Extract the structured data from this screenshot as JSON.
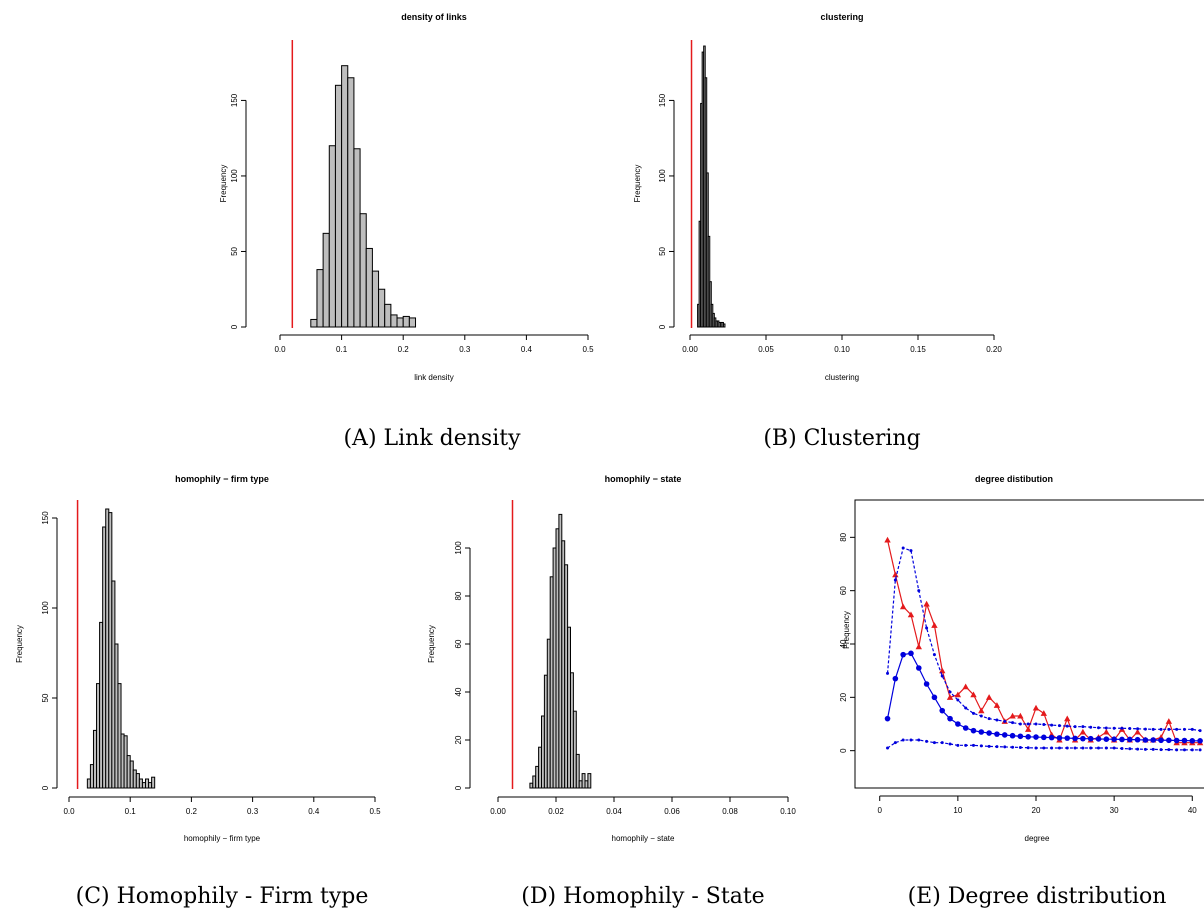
{
  "colors": {
    "observed_line": "#e41a1c",
    "hist_fill": "#bebebe",
    "simulated": "#0000dd",
    "observed_series": "#e41a1c"
  },
  "chart_data": [
    {
      "id": "A",
      "type": "bar",
      "caption": "(A) Link density",
      "title": "density of links",
      "xlabel": "link density",
      "ylabel": "Frequency",
      "xlim": [
        0,
        0.5
      ],
      "ylim": [
        0,
        190
      ],
      "xticks": [
        "0.0",
        "0.1",
        "0.2",
        "0.3",
        "0.4",
        "0.5"
      ],
      "xtick_values": [
        0,
        0.1,
        0.2,
        0.3,
        0.4,
        0.5
      ],
      "yticks": [
        "0",
        "50",
        "100",
        "150"
      ],
      "ytick_values": [
        0,
        50,
        100,
        150
      ],
      "bin_start": 0.05,
      "bin_width": 0.01,
      "values": [
        5,
        38,
        62,
        120,
        160,
        173,
        165,
        118,
        75,
        52,
        37,
        25,
        15,
        8,
        6,
        7,
        6
      ],
      "observed": 0.02
    },
    {
      "id": "B",
      "type": "bar",
      "caption": "(B) Clustering",
      "title": "clustering",
      "xlabel": "clustering",
      "ylabel": "Frequency",
      "xlim": [
        0,
        0.2
      ],
      "ylim": [
        0,
        190
      ],
      "xticks": [
        "0.00",
        "0.05",
        "0.10",
        "0.15",
        "0.20"
      ],
      "xtick_values": [
        0,
        0.05,
        0.1,
        0.15,
        0.2
      ],
      "yticks": [
        "0",
        "50",
        "100",
        "150"
      ],
      "ytick_values": [
        0,
        50,
        100,
        150
      ],
      "bin_start": 0.005,
      "bin_width": 0.001,
      "values": [
        15,
        70,
        148,
        182,
        186,
        165,
        102,
        60,
        30,
        15,
        9,
        6,
        4,
        4,
        3,
        3,
        3,
        2
      ],
      "observed": 0.001
    },
    {
      "id": "C",
      "type": "bar",
      "caption": "(C) Homophily - Firm type",
      "title": "homophily − firm type",
      "xlabel": "homophily − firm type",
      "ylabel": "Frequency",
      "xlim": [
        0,
        0.5
      ],
      "ylim": [
        0,
        160
      ],
      "xticks": [
        "0.0",
        "0.1",
        "0.2",
        "0.3",
        "0.4",
        "0.5"
      ],
      "xtick_values": [
        0,
        0.1,
        0.2,
        0.3,
        0.4,
        0.5
      ],
      "yticks": [
        "0",
        "50",
        "100",
        "150"
      ],
      "ytick_values": [
        0,
        50,
        100,
        150
      ],
      "bin_start": 0.03,
      "bin_width": 0.005,
      "values": [
        5,
        13,
        32,
        58,
        92,
        145,
        155,
        153,
        115,
        80,
        58,
        30,
        29,
        18,
        15,
        10,
        8,
        5,
        3,
        5,
        3,
        6
      ],
      "observed": 0.014
    },
    {
      "id": "D",
      "type": "bar",
      "caption": "(D) Homophily - State",
      "title": "homophily − state",
      "xlabel": "homophily − state",
      "ylabel": "Frequency",
      "xlim": [
        0,
        0.1
      ],
      "ylim": [
        0,
        120
      ],
      "xticks": [
        "0.00",
        "0.02",
        "0.04",
        "0.06",
        "0.08",
        "0.10"
      ],
      "xtick_values": [
        0,
        0.02,
        0.04,
        0.06,
        0.08,
        0.1
      ],
      "yticks": [
        "0",
        "20",
        "40",
        "60",
        "80",
        "100"
      ],
      "ytick_values": [
        0,
        20,
        40,
        60,
        80,
        100
      ],
      "bin_start": 0.011,
      "bin_width": 0.001,
      "values": [
        2,
        5,
        9,
        17,
        30,
        47,
        62,
        88,
        100,
        108,
        114,
        103,
        93,
        67,
        48,
        32,
        14,
        3,
        6,
        3,
        6
      ],
      "observed": 0.005
    },
    {
      "id": "E",
      "type": "line",
      "caption": "(E) Degree distribution",
      "title": "degree distibution",
      "xlabel": "degree",
      "ylabel": "Frequency",
      "xlim": [
        -1.5,
        41.5
      ],
      "ylim": [
        -3.5,
        94
      ],
      "xticks": [
        "0",
        "10",
        "20",
        "30",
        "40"
      ],
      "xtick_values": [
        0,
        10,
        20,
        30,
        40
      ],
      "yticks": [
        "0",
        "20",
        "40",
        "60",
        "80"
      ],
      "ytick_values": [
        0,
        20,
        40,
        60,
        80
      ],
      "x": [
        1,
        2,
        3,
        4,
        5,
        6,
        7,
        8,
        9,
        10,
        11,
        12,
        13,
        14,
        15,
        16,
        17,
        18,
        19,
        20,
        21,
        22,
        23,
        24,
        25,
        26,
        27,
        28,
        29,
        30,
        31,
        32,
        33,
        34,
        35,
        36,
        37,
        38,
        39,
        40,
        41
      ],
      "series": [
        {
          "role": "observed",
          "style": "solid-triangle",
          "values": [
            79,
            66,
            54,
            51,
            39,
            55,
            47,
            30,
            20,
            21,
            24,
            21,
            15,
            20,
            17,
            11,
            13,
            13,
            8,
            16,
            14,
            6,
            4,
            12,
            4,
            7,
            4,
            5,
            7,
            4,
            8,
            4,
            7,
            4,
            4,
            5,
            11,
            3,
            3,
            3,
            3
          ]
        },
        {
          "role": "simulated-mean",
          "style": "solid-circle",
          "values": [
            12,
            27,
            36,
            36.5,
            31,
            25,
            20,
            15,
            12,
            10,
            8.5,
            7.5,
            7,
            6.6,
            6.2,
            5.9,
            5.6,
            5.4,
            5.2,
            5.1,
            5,
            4.9,
            4.8,
            4.7,
            4.6,
            4.5,
            4.5,
            4.4,
            4.3,
            4.3,
            4.2,
            4.2,
            4.1,
            4,
            4,
            3.9,
            3.9,
            3.8,
            3.8,
            3.7,
            3.7
          ]
        },
        {
          "role": "simulated-upper",
          "style": "dashed-point",
          "values": [
            29,
            64,
            76,
            75,
            60,
            46,
            36,
            28,
            22,
            19,
            16,
            14,
            13,
            12,
            11.5,
            11,
            10.5,
            10,
            10,
            10,
            9.8,
            9.6,
            9.4,
            9.2,
            9,
            9,
            8.8,
            8.6,
            8.5,
            8.4,
            8.4,
            8.3,
            8.2,
            8.1,
            8,
            8,
            8,
            8,
            8,
            8,
            7.5
          ]
        },
        {
          "role": "simulated-lower",
          "style": "dashed-point",
          "values": [
            1,
            3,
            4,
            4,
            4,
            3.5,
            3,
            3,
            2.5,
            2,
            2,
            2,
            1.8,
            1.6,
            1.5,
            1.4,
            1.3,
            1.2,
            1.1,
            1,
            1,
            1,
            1,
            1,
            1,
            1,
            1,
            1,
            1,
            1,
            0.8,
            0.7,
            0.6,
            0.5,
            0.5,
            0.4,
            0.4,
            0.3,
            0.3,
            0.3,
            0.3
          ]
        }
      ]
    }
  ]
}
